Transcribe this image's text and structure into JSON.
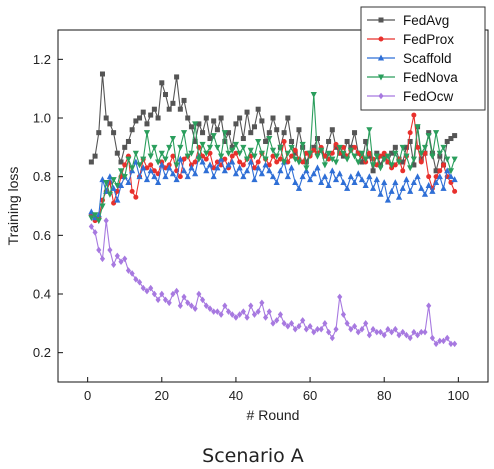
{
  "chart_data": {
    "type": "line",
    "xlabel": "# Round",
    "ylabel": "Training loss",
    "caption": "Scenario A",
    "xlim": [
      -8,
      108
    ],
    "ylim": [
      0.1,
      1.3
    ],
    "xticks": [
      0,
      20,
      40,
      60,
      80,
      100
    ],
    "yticks": [
      0.2,
      0.4,
      0.6,
      0.8,
      1.0,
      1.2
    ],
    "ytick_labels": [
      "0.2",
      "0.4",
      "0.6",
      "0.8",
      "1.0",
      "1.2"
    ],
    "legend_position": "top-right",
    "series": [
      {
        "name": "FedAvg",
        "color": "#555555",
        "marker": "square",
        "x": [
          1,
          2,
          3,
          4,
          5,
          6,
          7,
          8,
          9,
          10,
          11,
          12,
          13,
          14,
          15,
          16,
          17,
          18,
          19,
          20,
          21,
          22,
          23,
          24,
          25,
          26,
          27,
          28,
          29,
          30,
          31,
          32,
          33,
          34,
          35,
          36,
          37,
          38,
          39,
          40,
          41,
          42,
          43,
          44,
          45,
          46,
          47,
          48,
          49,
          50,
          51,
          52,
          53,
          54,
          55,
          56,
          57,
          58,
          59,
          60,
          61,
          62,
          63,
          64,
          65,
          66,
          67,
          68,
          69,
          70,
          71,
          72,
          73,
          74,
          75,
          76,
          77,
          78,
          79,
          80,
          81,
          82,
          83,
          84,
          85,
          86,
          87,
          88,
          89,
          90,
          91,
          92,
          93,
          94,
          95,
          96,
          97,
          98,
          99
        ],
        "y": [
          0.85,
          0.87,
          0.95,
          1.15,
          1.0,
          0.98,
          0.95,
          0.88,
          0.85,
          0.9,
          0.92,
          0.96,
          0.99,
          1.0,
          1.02,
          0.98,
          1.01,
          1.03,
          1.0,
          1.12,
          1.08,
          1.03,
          1.05,
          1.14,
          1.03,
          1.06,
          1.0,
          0.97,
          0.92,
          0.98,
          0.95,
          1.0,
          0.93,
          0.99,
          0.96,
          1.0,
          0.92,
          0.95,
          0.9,
          0.98,
          1.0,
          0.93,
          1.02,
          0.95,
          0.97,
          1.03,
          0.99,
          0.92,
          0.95,
          1.0,
          0.96,
          0.9,
          0.95,
          1.0,
          0.92,
          0.88,
          0.96,
          0.9,
          0.85,
          0.88,
          0.9,
          0.93,
          0.89,
          0.87,
          0.92,
          0.96,
          0.9,
          0.88,
          0.87,
          0.92,
          0.9,
          0.95,
          0.88,
          0.85,
          0.92,
          0.87,
          0.82,
          0.88,
          0.84,
          0.87,
          0.85,
          0.88,
          0.9,
          0.86,
          0.85,
          0.9,
          0.92,
          0.84,
          0.97,
          0.86,
          0.88,
          0.95,
          0.88,
          0.82,
          0.87,
          0.84,
          0.92,
          0.93,
          0.94
        ]
      },
      {
        "name": "FedProx",
        "color": "#e8302c",
        "marker": "circle",
        "x": [
          1,
          2,
          3,
          4,
          5,
          6,
          7,
          8,
          9,
          10,
          11,
          12,
          13,
          14,
          15,
          16,
          17,
          18,
          19,
          20,
          21,
          22,
          23,
          24,
          25,
          26,
          27,
          28,
          29,
          30,
          31,
          32,
          33,
          34,
          35,
          36,
          37,
          38,
          39,
          40,
          41,
          42,
          43,
          44,
          45,
          46,
          47,
          48,
          49,
          50,
          51,
          52,
          53,
          54,
          55,
          56,
          57,
          58,
          59,
          60,
          61,
          62,
          63,
          64,
          65,
          66,
          67,
          68,
          69,
          70,
          71,
          72,
          73,
          74,
          75,
          76,
          77,
          78,
          79,
          80,
          81,
          82,
          83,
          84,
          85,
          86,
          87,
          88,
          89,
          90,
          91,
          92,
          93,
          94,
          95,
          96,
          97,
          98,
          99
        ],
        "y": [
          0.67,
          0.65,
          0.66,
          0.72,
          0.75,
          0.78,
          0.71,
          0.75,
          0.8,
          0.84,
          0.87,
          0.75,
          0.73,
          0.8,
          0.86,
          0.83,
          0.84,
          0.82,
          0.81,
          0.85,
          0.83,
          0.84,
          0.87,
          0.82,
          0.8,
          0.86,
          0.87,
          0.84,
          0.85,
          0.9,
          0.87,
          0.86,
          0.88,
          0.83,
          0.85,
          0.84,
          0.86,
          0.83,
          0.87,
          0.88,
          0.85,
          0.84,
          0.86,
          0.87,
          0.83,
          0.85,
          0.88,
          0.86,
          0.84,
          0.87,
          0.85,
          0.86,
          0.92,
          0.85,
          0.87,
          0.89,
          0.86,
          0.85,
          0.88,
          0.87,
          0.89,
          0.88,
          0.9,
          0.87,
          0.86,
          0.88,
          0.91,
          0.88,
          0.9,
          0.87,
          0.89,
          0.9,
          0.88,
          0.87,
          0.85,
          0.88,
          0.86,
          0.84,
          0.87,
          0.88,
          0.85,
          0.83,
          0.84,
          0.86,
          0.82,
          0.87,
          0.95,
          1.01,
          0.9,
          0.85,
          0.88,
          0.8,
          0.76,
          0.8,
          0.82,
          0.84,
          0.8,
          0.78,
          0.75
        ]
      },
      {
        "name": "Scaffold",
        "color": "#2f6fd6",
        "marker": "triangle-up",
        "x": [
          1,
          2,
          3,
          4,
          5,
          6,
          7,
          8,
          9,
          10,
          11,
          12,
          13,
          14,
          15,
          16,
          17,
          18,
          19,
          20,
          21,
          22,
          23,
          24,
          25,
          26,
          27,
          28,
          29,
          30,
          31,
          32,
          33,
          34,
          35,
          36,
          37,
          38,
          39,
          40,
          41,
          42,
          43,
          44,
          45,
          46,
          47,
          48,
          49,
          50,
          51,
          52,
          53,
          54,
          55,
          56,
          57,
          58,
          59,
          60,
          61,
          62,
          63,
          64,
          65,
          66,
          67,
          68,
          69,
          70,
          71,
          72,
          73,
          74,
          75,
          76,
          77,
          78,
          79,
          80,
          81,
          82,
          83,
          84,
          85,
          86,
          87,
          88,
          89,
          90,
          91,
          92,
          93,
          94,
          95,
          96,
          97,
          98,
          99
        ],
        "y": [
          0.68,
          0.66,
          0.67,
          0.79,
          0.75,
          0.8,
          0.76,
          0.72,
          0.77,
          0.8,
          0.78,
          0.82,
          0.85,
          0.8,
          0.83,
          0.79,
          0.82,
          0.8,
          0.78,
          0.84,
          0.8,
          0.83,
          0.81,
          0.79,
          0.86,
          0.82,
          0.8,
          0.83,
          0.81,
          0.87,
          0.85,
          0.82,
          0.84,
          0.8,
          0.83,
          0.86,
          0.82,
          0.84,
          0.85,
          0.81,
          0.83,
          0.8,
          0.82,
          0.85,
          0.79,
          0.83,
          0.81,
          0.84,
          0.82,
          0.8,
          0.78,
          0.82,
          0.85,
          0.8,
          0.83,
          0.78,
          0.76,
          0.8,
          0.82,
          0.79,
          0.81,
          0.83,
          0.78,
          0.8,
          0.77,
          0.82,
          0.79,
          0.81,
          0.78,
          0.76,
          0.8,
          0.78,
          0.81,
          0.79,
          0.77,
          0.8,
          0.76,
          0.79,
          0.74,
          0.78,
          0.72,
          0.75,
          0.78,
          0.73,
          0.76,
          0.79,
          0.75,
          0.78,
          0.8,
          0.76,
          0.74,
          0.77,
          0.75,
          0.78,
          0.8,
          0.76,
          0.82,
          0.8,
          0.79
        ]
      },
      {
        "name": "FedNova",
        "color": "#2a9e5c",
        "marker": "triangle-down",
        "x": [
          1,
          2,
          3,
          4,
          5,
          6,
          7,
          8,
          9,
          10,
          11,
          12,
          13,
          14,
          15,
          16,
          17,
          18,
          19,
          20,
          21,
          22,
          23,
          24,
          25,
          26,
          27,
          28,
          29,
          30,
          31,
          32,
          33,
          34,
          35,
          36,
          37,
          38,
          39,
          40,
          41,
          42,
          43,
          44,
          45,
          46,
          47,
          48,
          49,
          50,
          51,
          52,
          53,
          54,
          55,
          56,
          57,
          58,
          59,
          60,
          61,
          62,
          63,
          64,
          65,
          66,
          67,
          68,
          69,
          70,
          71,
          72,
          73,
          74,
          75,
          76,
          77,
          78,
          79,
          80,
          81,
          82,
          83,
          84,
          85,
          86,
          87,
          88,
          89,
          90,
          91,
          92,
          93,
          94,
          95,
          96,
          97,
          98,
          99
        ],
        "y": [
          0.66,
          0.67,
          0.65,
          0.7,
          0.78,
          0.74,
          0.79,
          0.77,
          0.82,
          0.8,
          0.86,
          0.83,
          0.88,
          0.84,
          0.86,
          0.95,
          0.87,
          0.9,
          0.85,
          0.88,
          0.86,
          0.9,
          0.93,
          0.84,
          0.9,
          0.95,
          0.87,
          0.88,
          0.98,
          0.86,
          0.91,
          0.88,
          0.9,
          0.94,
          0.9,
          0.87,
          0.95,
          0.88,
          0.89,
          0.91,
          0.88,
          0.9,
          0.86,
          0.89,
          0.87,
          0.92,
          0.88,
          0.86,
          0.93,
          0.89,
          0.87,
          0.9,
          0.85,
          0.88,
          0.9,
          0.86,
          0.85,
          0.91,
          0.83,
          0.88,
          1.08,
          0.87,
          0.89,
          0.84,
          0.88,
          0.86,
          0.85,
          0.9,
          0.88,
          0.86,
          0.89,
          0.87,
          0.85,
          0.88,
          0.86,
          0.96,
          0.84,
          0.87,
          0.83,
          0.86,
          0.87,
          0.84,
          0.88,
          0.85,
          0.9,
          0.87,
          0.83,
          0.86,
          0.97,
          0.88,
          0.9,
          0.94,
          0.87,
          0.95,
          0.88,
          0.9,
          0.86,
          0.82,
          0.86
        ]
      },
      {
        "name": "FedOcw",
        "color": "#a779e0",
        "marker": "diamond",
        "x": [
          1,
          2,
          3,
          4,
          5,
          6,
          7,
          8,
          9,
          10,
          11,
          12,
          13,
          14,
          15,
          16,
          17,
          18,
          19,
          20,
          21,
          22,
          23,
          24,
          25,
          26,
          27,
          28,
          29,
          30,
          31,
          32,
          33,
          34,
          35,
          36,
          37,
          38,
          39,
          40,
          41,
          42,
          43,
          44,
          45,
          46,
          47,
          48,
          49,
          50,
          51,
          52,
          53,
          54,
          55,
          56,
          57,
          58,
          59,
          60,
          61,
          62,
          63,
          64,
          65,
          66,
          67,
          68,
          69,
          70,
          71,
          72,
          73,
          74,
          75,
          76,
          77,
          78,
          79,
          80,
          81,
          82,
          83,
          84,
          85,
          86,
          87,
          88,
          89,
          90,
          91,
          92,
          93,
          94,
          95,
          96,
          97,
          98,
          99
        ],
        "y": [
          0.63,
          0.61,
          0.55,
          0.52,
          0.65,
          0.55,
          0.5,
          0.53,
          0.51,
          0.52,
          0.48,
          0.47,
          0.45,
          0.44,
          0.42,
          0.41,
          0.42,
          0.4,
          0.38,
          0.4,
          0.38,
          0.37,
          0.4,
          0.41,
          0.36,
          0.39,
          0.37,
          0.36,
          0.35,
          0.4,
          0.38,
          0.36,
          0.35,
          0.34,
          0.34,
          0.33,
          0.36,
          0.34,
          0.33,
          0.32,
          0.33,
          0.34,
          0.32,
          0.36,
          0.33,
          0.34,
          0.37,
          0.32,
          0.34,
          0.3,
          0.31,
          0.33,
          0.3,
          0.29,
          0.3,
          0.28,
          0.29,
          0.31,
          0.28,
          0.29,
          0.27,
          0.28,
          0.28,
          0.3,
          0.27,
          0.25,
          0.28,
          0.39,
          0.33,
          0.3,
          0.28,
          0.29,
          0.27,
          0.28,
          0.3,
          0.26,
          0.28,
          0.27,
          0.27,
          0.26,
          0.28,
          0.27,
          0.28,
          0.26,
          0.27,
          0.26,
          0.25,
          0.27,
          0.26,
          0.27,
          0.27,
          0.36,
          0.25,
          0.23,
          0.24,
          0.24,
          0.25,
          0.23,
          0.23
        ]
      }
    ]
  }
}
